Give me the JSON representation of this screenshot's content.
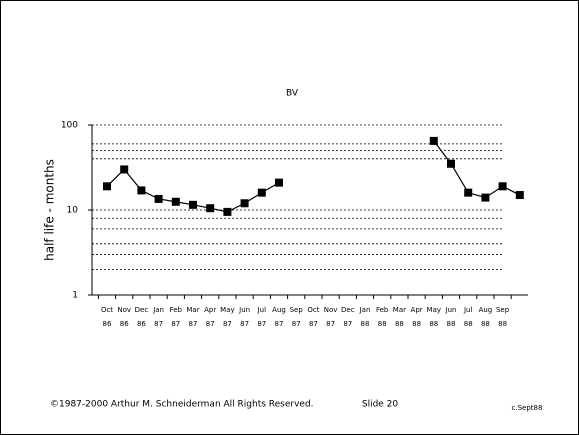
{
  "chart_data": {
    "type": "line",
    "title": "BV",
    "y_label": "half life - months",
    "categories": [
      "Oct",
      "Nov",
      "Dec",
      "Jan",
      "Feb",
      "Mar",
      "Apr",
      "May",
      "Jun",
      "Jul",
      "Aug",
      "Sep",
      "Oct",
      "Nov",
      "Dec",
      "Jan",
      "Feb",
      "Mar",
      "Apr",
      "May",
      "Jun",
      "Jul",
      "Aug",
      "Sep",
      null
    ],
    "category_years": [
      "86",
      "86",
      "86",
      "87",
      "87",
      "87",
      "87",
      "87",
      "87",
      "87",
      "87",
      "87",
      "87",
      "87",
      "87",
      "88",
      "88",
      "88",
      "88",
      "88",
      "88",
      "88",
      "88",
      "88",
      null
    ],
    "series": [
      {
        "name": "BV",
        "color": "#000000",
        "values": [
          19,
          30,
          17,
          13.5,
          12.5,
          11.5,
          10.5,
          9.5,
          12,
          16,
          21,
          null,
          null,
          null,
          null,
          null,
          null,
          null,
          null,
          65,
          35,
          16,
          14,
          19,
          15
        ]
      }
    ],
    "log_scale": true,
    "ylim": [
      1,
      100
    ],
    "yticks": [
      1,
      10,
      100
    ],
    "grid_lines": [
      100,
      60,
      50,
      40,
      10,
      8,
      6,
      4,
      3,
      2
    ],
    "footer": {
      "copyright": "©1987-2000 Arthur M. Schneiderman All Rights Reserved.",
      "slide": "Slide 20",
      "date": "c.Sept88"
    }
  }
}
